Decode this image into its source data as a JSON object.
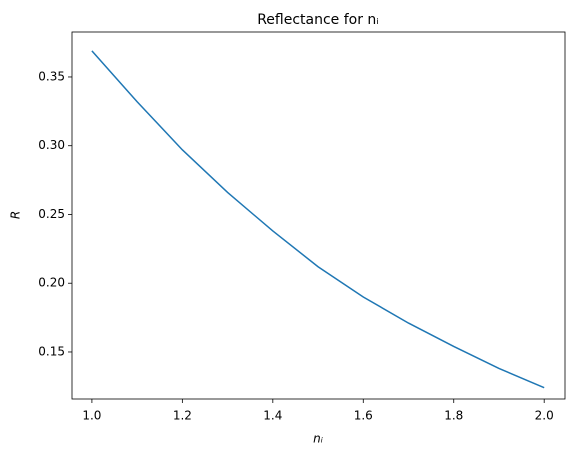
{
  "chart_data": {
    "type": "line",
    "title": "Reflectance for nᵢ",
    "xlabel": "nᵢ",
    "ylabel": "R",
    "x": [
      1.0,
      1.1,
      1.2,
      1.3,
      1.4,
      1.5,
      1.6,
      1.7,
      1.8,
      1.9,
      2.0
    ],
    "series": [
      {
        "color": "#1f77b4",
        "values": [
          0.369,
          0.332,
          0.297,
          0.266,
          0.238,
          0.212,
          0.19,
          0.171,
          0.154,
          0.138,
          0.124
        ]
      }
    ],
    "xlim": [
      0.956,
      2.046
    ],
    "ylim": [
      0.1158,
      0.3827
    ],
    "xticks": [
      {
        "value": 1.0,
        "label": "1.0"
      },
      {
        "value": 1.2,
        "label": "1.2"
      },
      {
        "value": 1.4,
        "label": "1.4"
      },
      {
        "value": 1.6,
        "label": "1.6"
      },
      {
        "value": 1.8,
        "label": "1.8"
      },
      {
        "value": 2.0,
        "label": "2.0"
      }
    ],
    "yticks": [
      {
        "value": 0.15,
        "label": "0.15"
      },
      {
        "value": 0.2,
        "label": "0.20"
      },
      {
        "value": 0.25,
        "label": "0.25"
      },
      {
        "value": 0.3,
        "label": "0.30"
      },
      {
        "value": 0.35,
        "label": "0.35"
      }
    ],
    "grid": false
  }
}
